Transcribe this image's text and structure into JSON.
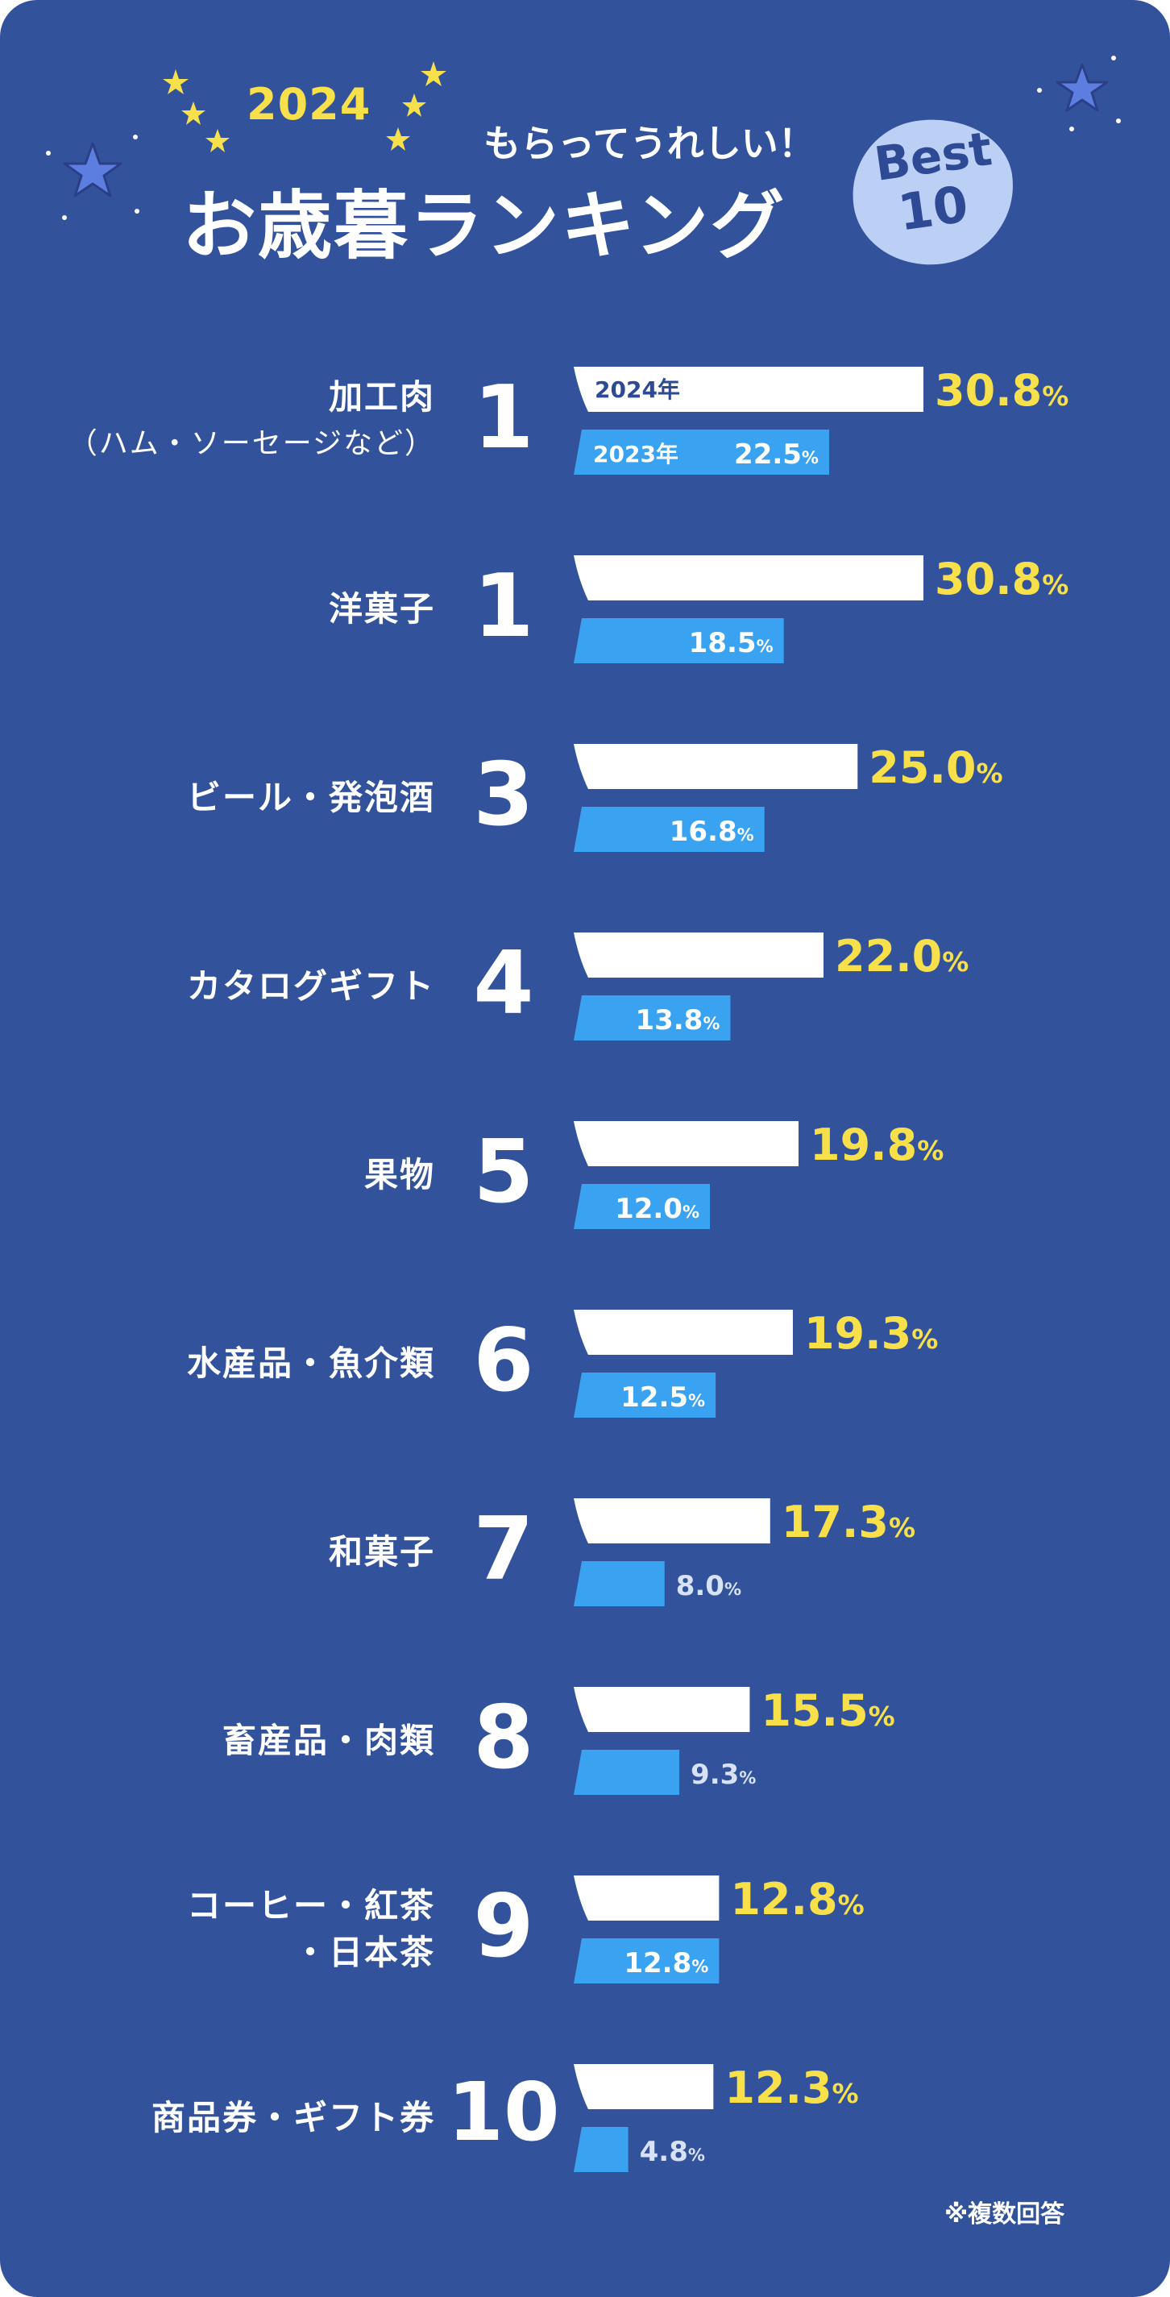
{
  "header": {
    "year": "2024",
    "subtitle": "もらってうれしい！",
    "title": "お歳暮ランキング",
    "badge_line1": "Best",
    "badge_line2": "10"
  },
  "footnote": "※複数回答",
  "colors": {
    "background": "#33529c",
    "bar_2024": "#ffffff",
    "bar_2023": "#39a3f2",
    "value_2024_text": "#f7e04a",
    "star_yellow": "#f7e04a",
    "star_blue": "#5b7ee0"
  },
  "chart_data": {
    "type": "bar",
    "orientation": "horizontal",
    "title": "お歳暮ランキング",
    "unit": "%",
    "xlim": [
      0,
      30.8
    ],
    "series_labels": [
      "2024年",
      "2023年"
    ],
    "items": [
      {
        "rank": "1",
        "label": [
          "加工肉",
          "（ハム・ソーセージなど）"
        ],
        "v2024": 30.8,
        "v2023": 22.5,
        "t2024": "30.8",
        "t2023": "22.5"
      },
      {
        "rank": "1",
        "label": [
          "洋菓子"
        ],
        "v2024": 30.8,
        "v2023": 18.5,
        "t2024": "30.8",
        "t2023": "18.5"
      },
      {
        "rank": "3",
        "label": [
          "ビール・発泡酒"
        ],
        "v2024": 25.0,
        "v2023": 16.8,
        "t2024": "25.0",
        "t2023": "16.8"
      },
      {
        "rank": "4",
        "label": [
          "カタログギフト"
        ],
        "v2024": 22.0,
        "v2023": 13.8,
        "t2024": "22.0",
        "t2023": "13.8"
      },
      {
        "rank": "5",
        "label": [
          "果物"
        ],
        "v2024": 19.8,
        "v2023": 12.0,
        "t2024": "19.8",
        "t2023": "12.0"
      },
      {
        "rank": "6",
        "label": [
          "水産品・魚介類"
        ],
        "v2024": 19.3,
        "v2023": 12.5,
        "t2024": "19.3",
        "t2023": "12.5"
      },
      {
        "rank": "7",
        "label": [
          "和菓子"
        ],
        "v2024": 17.3,
        "v2023": 8.0,
        "t2024": "17.3",
        "t2023": "8.0"
      },
      {
        "rank": "8",
        "label": [
          "畜産品・肉類"
        ],
        "v2024": 15.5,
        "v2023": 9.3,
        "t2024": "15.5",
        "t2023": "9.3"
      },
      {
        "rank": "9",
        "label": [
          "コーヒー・紅茶",
          "・日本茶"
        ],
        "v2024": 12.8,
        "v2023": 12.8,
        "t2024": "12.8",
        "t2023": "12.8"
      },
      {
        "rank": "10",
        "label": [
          "商品券・ギフト券"
        ],
        "v2024": 12.3,
        "v2023": 4.8,
        "t2024": "12.3",
        "t2023": "4.8"
      }
    ]
  }
}
